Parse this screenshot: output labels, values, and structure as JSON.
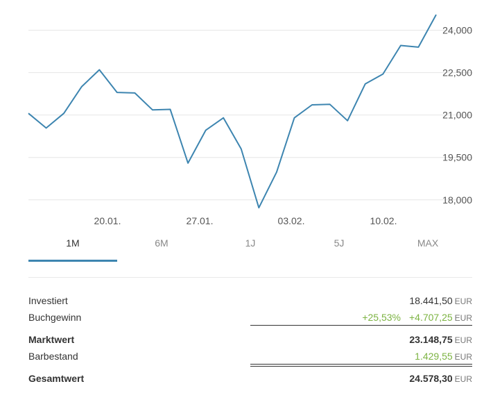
{
  "chart_data": {
    "type": "line",
    "x_ticks": [
      "20.01.",
      "27.01.",
      "03.02.",
      "10.02."
    ],
    "y_ticks": [
      "24,000",
      "22,500",
      "21,000",
      "19,500",
      "18,000"
    ],
    "y_tick_values": [
      24000,
      22500,
      21000,
      19500,
      18000
    ],
    "ylim": [
      17700,
      24700
    ],
    "grid": true,
    "color": "#3d85b0",
    "series": [
      {
        "values": [
          21060,
          20540,
          21060,
          22000,
          22600,
          21800,
          21780,
          21180,
          21200,
          19300,
          20460,
          20900,
          19800,
          17720,
          18980,
          20900,
          21360,
          21380,
          20800,
          22100,
          22450,
          23460,
          23400,
          24550
        ]
      }
    ]
  },
  "tabs": {
    "items": [
      "1M",
      "6M",
      "1J",
      "5J",
      "MAX"
    ],
    "active": "1M"
  },
  "summary": {
    "currency": "EUR",
    "investiert": {
      "label": "Investiert",
      "value": "18.441,50"
    },
    "buchgewinn": {
      "label": "Buchgewinn",
      "pct": "+25,53%",
      "value": "+4.707,25"
    },
    "marktwert": {
      "label": "Marktwert",
      "value": "23.148,75"
    },
    "barbestand": {
      "label": "Barbestand",
      "value": "1.429,55"
    },
    "gesamtwert": {
      "label": "Gesamtwert",
      "value": "24.578,30"
    }
  },
  "colors": {
    "accent": "#3d85b0",
    "positive": "#7cb342"
  }
}
